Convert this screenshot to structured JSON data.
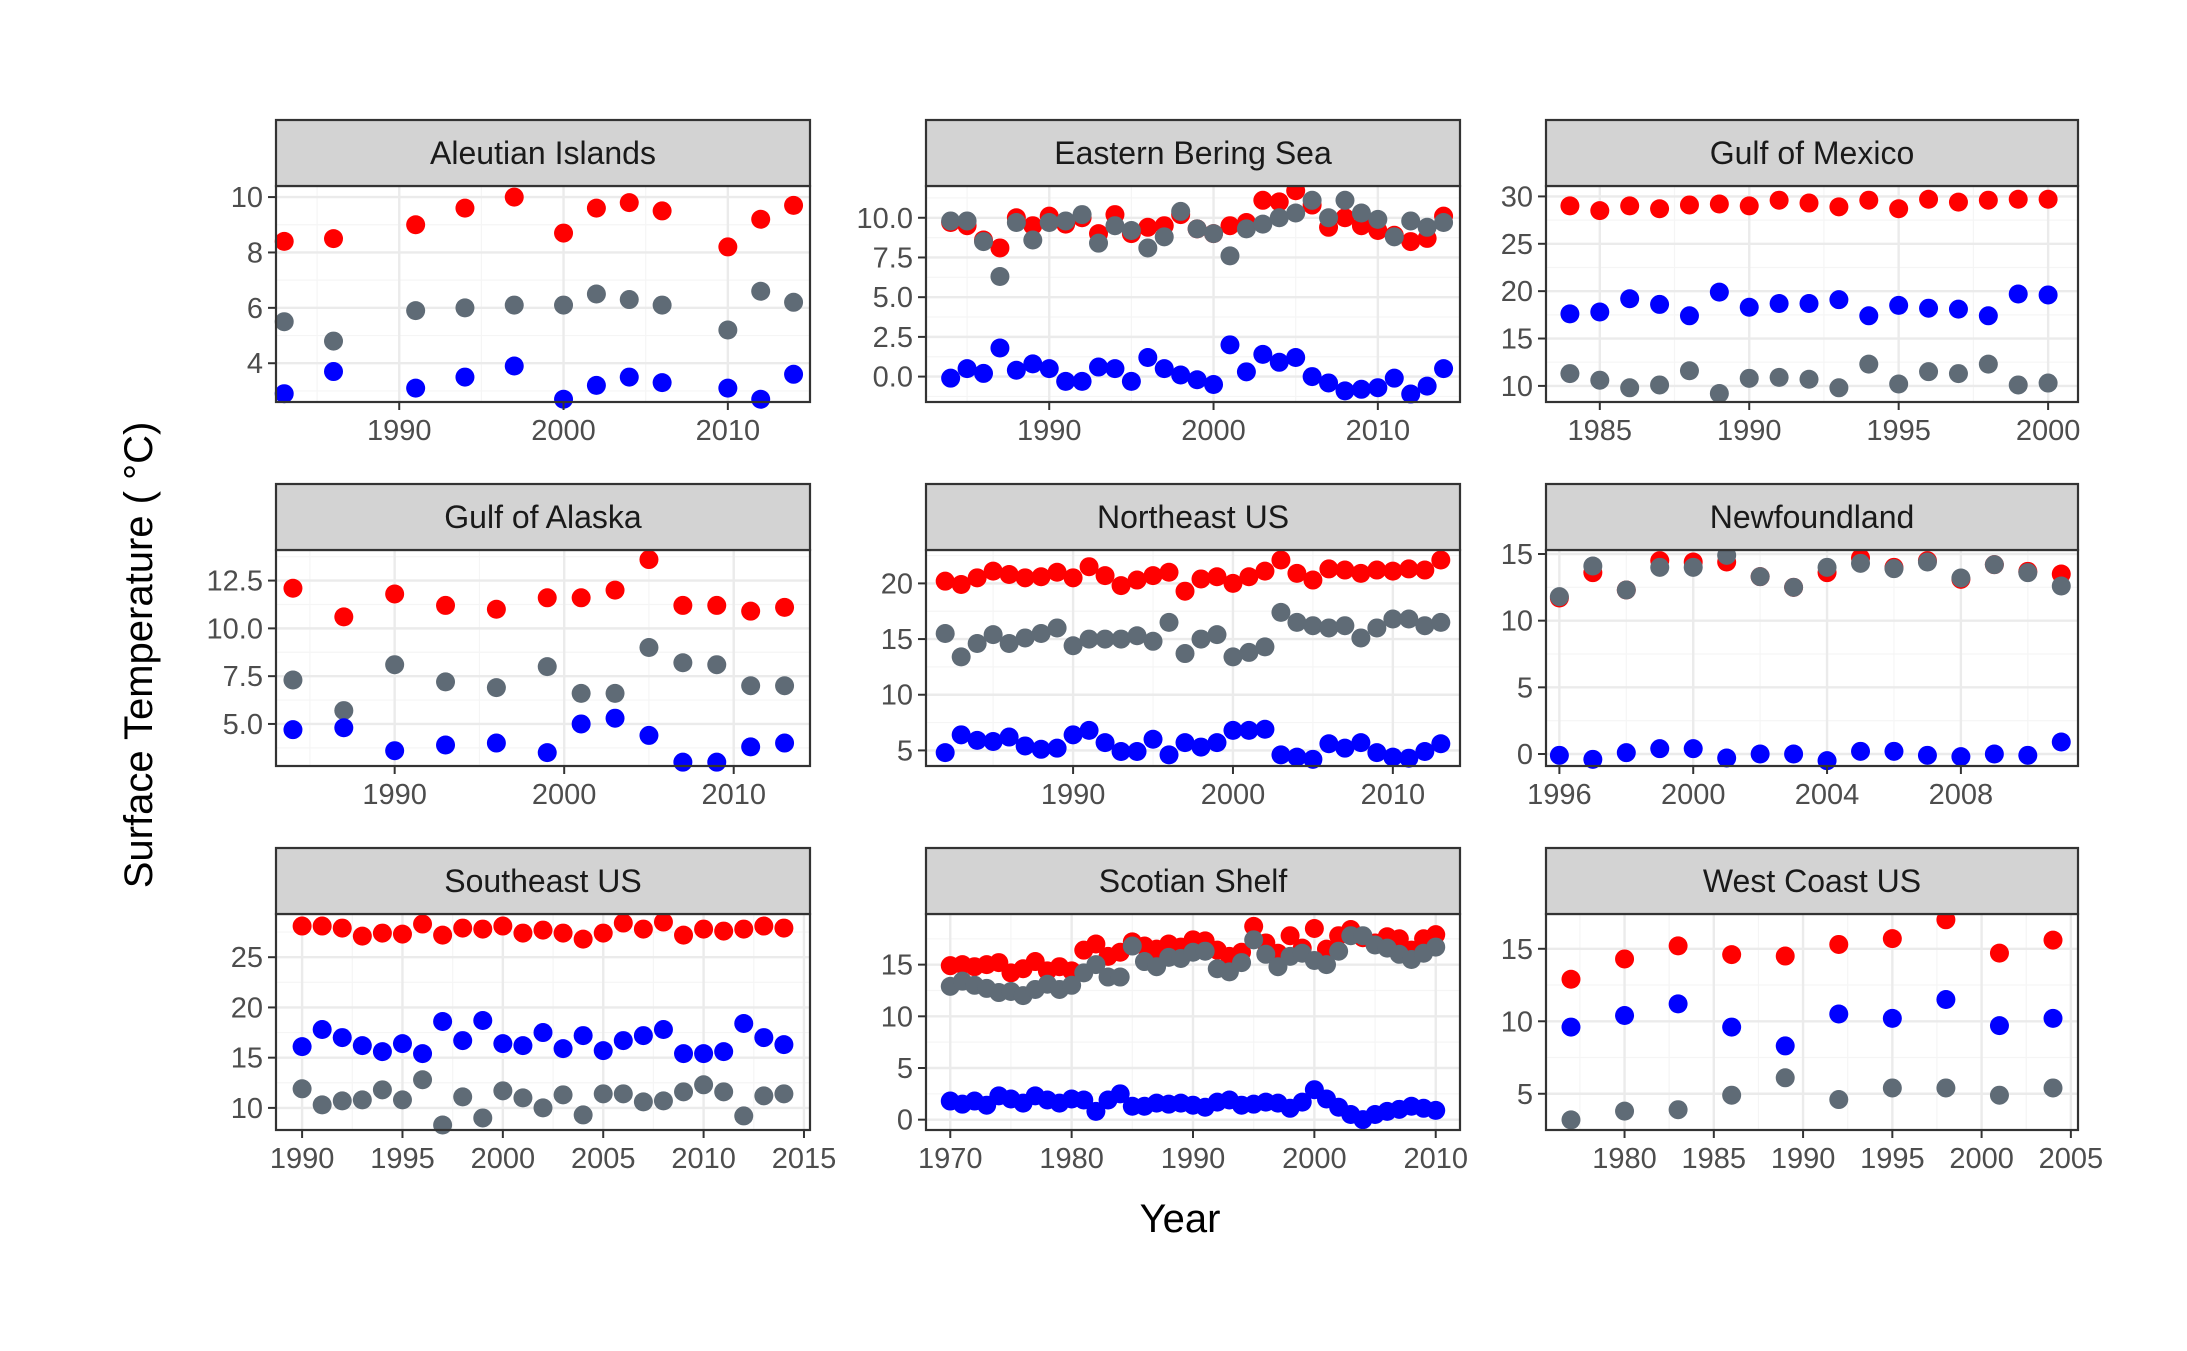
{
  "figure": {
    "xlabel": "Year",
    "ylabel": "Surface Temperature ( °C)"
  },
  "colors": {
    "red": "#ff0000",
    "blue": "#0000ff",
    "grey": "#5f6b76"
  },
  "chart_data": [
    {
      "type": "scatter",
      "title": "Aleutian Islands",
      "xlim": [
        1982.5,
        2015
      ],
      "ylim": [
        2.6,
        10.4
      ],
      "xticks": [
        1990,
        2000,
        2010
      ],
      "yticks": [
        4,
        6,
        8,
        10
      ],
      "x": [
        1983,
        1986,
        1991,
        1994,
        1997,
        2000,
        2002,
        2004,
        2006,
        2010,
        2012,
        2014
      ],
      "series": [
        {
          "color": "red",
          "values": [
            8.4,
            8.5,
            9.0,
            9.6,
            10.0,
            8.7,
            9.6,
            9.8,
            9.5,
            8.2,
            9.2,
            9.7
          ]
        },
        {
          "color": "grey",
          "values": [
            5.5,
            4.8,
            5.9,
            6.0,
            6.1,
            6.1,
            6.5,
            6.3,
            6.1,
            5.2,
            6.6,
            6.2
          ]
        },
        {
          "color": "blue",
          "values": [
            2.9,
            3.7,
            3.1,
            3.5,
            3.9,
            2.7,
            3.2,
            3.5,
            3.3,
            3.1,
            2.7,
            3.6
          ]
        }
      ]
    },
    {
      "type": "scatter",
      "title": "Eastern Bering Sea",
      "xlim": [
        1982.5,
        2015
      ],
      "ylim": [
        -1.6,
        12
      ],
      "xticks": [
        1990,
        2000,
        2010
      ],
      "yticks": [
        0.0,
        2.5,
        5.0,
        7.5,
        10.0
      ],
      "ytick_labels": [
        "0.0",
        "2.5",
        "5.0",
        "7.5",
        "10.0"
      ],
      "x": [
        1984,
        1985,
        1986,
        1987,
        1988,
        1989,
        1990,
        1991,
        1992,
        1993,
        1994,
        1995,
        1996,
        1997,
        1998,
        1999,
        2000,
        2001,
        2002,
        2003,
        2004,
        2005,
        2006,
        2007,
        2008,
        2009,
        2010,
        2011,
        2012,
        2013,
        2014
      ],
      "series": [
        {
          "color": "red",
          "values": [
            9.7,
            9.5,
            8.6,
            8.1,
            10.0,
            9.5,
            10.1,
            9.6,
            10.0,
            9.0,
            10.2,
            9.0,
            9.4,
            9.5,
            10.2,
            9.3,
            9.0,
            9.5,
            9.7,
            11.1,
            11.0,
            11.7,
            10.8,
            9.4,
            10.0,
            9.5,
            9.2,
            8.9,
            8.5,
            8.7,
            10.1
          ]
        },
        {
          "color": "grey",
          "values": [
            9.8,
            9.8,
            8.5,
            6.3,
            9.7,
            8.6,
            9.7,
            9.8,
            10.2,
            8.4,
            9.5,
            9.2,
            8.1,
            8.8,
            10.4,
            9.3,
            9.0,
            7.6,
            9.3,
            9.6,
            10.0,
            10.3,
            11.1,
            10.0,
            11.1,
            10.3,
            9.9,
            8.8,
            9.8,
            9.4,
            9.7
          ]
        },
        {
          "color": "blue",
          "values": [
            -0.1,
            0.5,
            0.2,
            1.8,
            0.4,
            0.8,
            0.5,
            -0.3,
            -0.3,
            0.6,
            0.5,
            -0.3,
            1.2,
            0.5,
            0.1,
            -0.2,
            -0.5,
            2.0,
            0.3,
            1.4,
            0.9,
            1.2,
            0.0,
            -0.4,
            -0.9,
            -0.8,
            -0.7,
            -0.1,
            -1.1,
            -0.6,
            0.5
          ]
        }
      ]
    },
    {
      "type": "scatter",
      "title": "Gulf of Mexico",
      "xlim": [
        1983.2,
        2001
      ],
      "ylim": [
        8.3,
        31.1
      ],
      "xticks": [
        1985,
        1990,
        1995,
        2000
      ],
      "yticks": [
        10,
        15,
        20,
        25,
        30
      ],
      "x": [
        1984,
        1985,
        1986,
        1987,
        1988,
        1989,
        1990,
        1991,
        1992,
        1993,
        1994,
        1995,
        1996,
        1997,
        1998,
        1999,
        2000
      ],
      "series": [
        {
          "color": "red",
          "values": [
            29.0,
            28.5,
            29.0,
            28.7,
            29.1,
            29.2,
            29.0,
            29.6,
            29.3,
            28.9,
            29.6,
            28.7,
            29.7,
            29.4,
            29.6,
            29.7,
            29.7
          ]
        },
        {
          "color": "blue",
          "values": [
            17.6,
            17.8,
            19.2,
            18.6,
            17.4,
            19.9,
            18.3,
            18.7,
            18.7,
            19.1,
            17.4,
            18.5,
            18.2,
            18.1,
            17.4,
            19.7,
            19.6
          ]
        },
        {
          "color": "grey",
          "values": [
            11.3,
            10.6,
            9.8,
            10.1,
            11.6,
            9.2,
            10.8,
            10.9,
            10.7,
            9.8,
            12.3,
            10.2,
            11.5,
            11.3,
            12.3,
            10.1,
            10.3
          ]
        }
      ]
    },
    {
      "type": "scatter",
      "title": "Gulf of Alaska",
      "xlim": [
        1983,
        2014.5
      ],
      "ylim": [
        2.8,
        14.1
      ],
      "xticks": [
        1990,
        2000,
        2010
      ],
      "yticks": [
        5.0,
        7.5,
        10.0,
        12.5
      ],
      "ytick_labels": [
        "5.0",
        "7.5",
        "10.0",
        "12.5"
      ],
      "x": [
        1984,
        1987,
        1990,
        1993,
        1996,
        1999,
        2001,
        2003,
        2005,
        2007,
        2009,
        2011,
        2013
      ],
      "series": [
        {
          "color": "red",
          "values": [
            12.1,
            10.6,
            11.8,
            11.2,
            11.0,
            11.6,
            11.6,
            12.0,
            13.6,
            11.2,
            11.2,
            10.9,
            11.1
          ]
        },
        {
          "color": "grey",
          "values": [
            7.3,
            5.7,
            8.1,
            7.2,
            6.9,
            8.0,
            6.6,
            6.6,
            9.0,
            8.2,
            8.1,
            7.0,
            7.0
          ]
        },
        {
          "color": "blue",
          "values": [
            4.7,
            4.8,
            3.6,
            3.9,
            4.0,
            3.5,
            5.0,
            5.3,
            4.4,
            3.0,
            3.0,
            3.8,
            4.0
          ]
        }
      ]
    },
    {
      "type": "scatter",
      "title": "Northeast US",
      "xlim": [
        1980.8,
        2014.2
      ],
      "ylim": [
        3.6,
        23
      ],
      "xticks": [
        1990,
        2000,
        2010
      ],
      "yticks": [
        5,
        10,
        15,
        20
      ],
      "x": [
        1982,
        1983,
        1984,
        1985,
        1986,
        1987,
        1988,
        1989,
        1990,
        1991,
        1992,
        1993,
        1994,
        1995,
        1996,
        1997,
        1998,
        1999,
        2000,
        2001,
        2002,
        2003,
        2004,
        2005,
        2006,
        2007,
        2008,
        2009,
        2010,
        2011,
        2012,
        2013
      ],
      "series": [
        {
          "color": "red",
          "values": [
            20.2,
            19.9,
            20.5,
            21.1,
            20.8,
            20.5,
            20.6,
            21.0,
            20.5,
            21.5,
            20.7,
            19.8,
            20.3,
            20.7,
            21.0,
            19.3,
            20.4,
            20.6,
            20.0,
            20.6,
            21.1,
            22.1,
            20.9,
            20.3,
            21.3,
            21.2,
            20.9,
            21.2,
            21.1,
            21.3,
            21.2,
            22.1
          ]
        },
        {
          "color": "grey",
          "values": [
            15.5,
            13.4,
            14.6,
            15.4,
            14.6,
            15.1,
            15.5,
            16.0,
            14.4,
            15.0,
            15.0,
            15.0,
            15.3,
            14.8,
            16.5,
            13.7,
            15.0,
            15.4,
            13.4,
            13.8,
            14.3,
            17.4,
            16.5,
            16.2,
            16.0,
            16.2,
            15.1,
            16.0,
            16.8,
            16.8,
            16.2,
            16.5
          ]
        },
        {
          "color": "blue",
          "values": [
            4.8,
            6.4,
            5.9,
            5.8,
            6.2,
            5.4,
            5.1,
            5.2,
            6.4,
            6.8,
            5.7,
            4.9,
            4.9,
            6.0,
            4.6,
            5.7,
            5.3,
            5.7,
            6.8,
            6.8,
            6.9,
            4.6,
            4.4,
            4.2,
            5.6,
            5.2,
            5.7,
            4.8,
            4.4,
            4.3,
            4.9,
            5.6
          ]
        }
      ]
    },
    {
      "type": "scatter",
      "title": "Newfoundland",
      "xlim": [
        1995.6,
        2011.5
      ],
      "ylim": [
        -0.9,
        15.3
      ],
      "xticks": [
        1996,
        2000,
        2004,
        2008
      ],
      "yticks": [
        0,
        5,
        10,
        15
      ],
      "x": [
        1996,
        1997,
        1998,
        1999,
        2000,
        2001,
        2002,
        2003,
        2004,
        2005,
        2006,
        2007,
        2008,
        2009,
        2010,
        2011
      ],
      "series": [
        {
          "color": "red",
          "values": [
            11.7,
            13.6,
            12.3,
            14.5,
            14.4,
            14.4,
            13.3,
            12.5,
            13.6,
            14.7,
            14.0,
            14.5,
            13.1,
            14.2,
            13.7,
            13.5
          ]
        },
        {
          "color": "grey",
          "values": [
            11.8,
            14.1,
            12.3,
            14.0,
            14.0,
            14.9,
            13.3,
            12.5,
            14.0,
            14.3,
            13.9,
            14.4,
            13.2,
            14.2,
            13.6,
            12.6
          ]
        },
        {
          "color": "blue",
          "values": [
            -0.1,
            -0.4,
            0.1,
            0.4,
            0.4,
            -0.3,
            0.0,
            0.0,
            -0.5,
            0.2,
            0.2,
            -0.1,
            -0.2,
            0.0,
            -0.1,
            0.9
          ]
        }
      ]
    },
    {
      "type": "scatter",
      "title": "Southeast US",
      "xlim": [
        1988.7,
        2015.3
      ],
      "ylim": [
        7.8,
        29.3
      ],
      "xticks": [
        1990,
        1995,
        2000,
        2005,
        2010,
        2015
      ],
      "yticks": [
        10,
        15,
        20,
        25
      ],
      "x": [
        1990,
        1991,
        1992,
        1993,
        1994,
        1995,
        1996,
        1997,
        1998,
        1999,
        2000,
        2001,
        2002,
        2003,
        2004,
        2005,
        2006,
        2007,
        2008,
        2009,
        2010,
        2011,
        2012,
        2013,
        2014
      ],
      "series": [
        {
          "color": "red",
          "values": [
            28.1,
            28.1,
            27.9,
            27.1,
            27.4,
            27.3,
            28.3,
            27.2,
            27.9,
            27.8,
            28.1,
            27.4,
            27.7,
            27.4,
            26.8,
            27.4,
            28.4,
            27.8,
            28.5,
            27.2,
            27.8,
            27.6,
            27.8,
            28.1,
            27.9
          ]
        },
        {
          "color": "blue",
          "values": [
            16.1,
            17.8,
            17.0,
            16.2,
            15.6,
            16.4,
            15.4,
            18.6,
            16.7,
            18.7,
            16.4,
            16.2,
            17.5,
            15.9,
            17.2,
            15.7,
            16.7,
            17.2,
            17.8,
            15.4,
            15.4,
            15.6,
            18.4,
            17.0,
            16.3
          ]
        },
        {
          "color": "grey",
          "values": [
            11.9,
            10.3,
            10.7,
            10.8,
            11.8,
            10.8,
            12.8,
            8.3,
            11.1,
            9.0,
            11.7,
            11.0,
            10.0,
            11.3,
            9.3,
            11.4,
            11.4,
            10.6,
            10.7,
            11.6,
            12.3,
            11.6,
            9.2,
            11.2,
            11.4
          ]
        }
      ]
    },
    {
      "type": "scatter",
      "title": "Scotian Shelf",
      "xlim": [
        1968,
        2012
      ],
      "ylim": [
        -1,
        19.9
      ],
      "xticks": [
        1970,
        1980,
        1990,
        2000,
        2010
      ],
      "yticks": [
        0,
        5,
        10,
        15
      ],
      "x": [
        1970,
        1971,
        1972,
        1973,
        1974,
        1975,
        1976,
        1977,
        1978,
        1979,
        1980,
        1981,
        1982,
        1983,
        1984,
        1985,
        1986,
        1987,
        1988,
        1989,
        1990,
        1991,
        1992,
        1993,
        1994,
        1995,
        1996,
        1997,
        1998,
        1999,
        2000,
        2001,
        2002,
        2003,
        2004,
        2005,
        2006,
        2007,
        2008,
        2009,
        2010
      ],
      "series": [
        {
          "color": "red",
          "values": [
            14.9,
            15.0,
            14.8,
            15.0,
            15.2,
            14.2,
            14.6,
            15.3,
            14.4,
            14.8,
            14.4,
            16.4,
            17.0,
            15.8,
            16.2,
            17.2,
            16.8,
            16.5,
            17.0,
            16.7,
            17.4,
            17.3,
            16.4,
            15.8,
            16.2,
            18.7,
            17.1,
            16.1,
            17.8,
            16.6,
            18.5,
            16.5,
            17.8,
            18.4,
            17.6,
            17.1,
            17.7,
            17.5,
            16.4,
            17.5,
            17.9
          ]
        },
        {
          "color": "grey",
          "values": [
            12.9,
            13.4,
            13.0,
            12.7,
            12.3,
            12.4,
            12.0,
            12.6,
            13.1,
            12.6,
            13.0,
            14.2,
            15.0,
            13.8,
            13.8,
            16.8,
            15.3,
            14.8,
            15.7,
            15.6,
            16.2,
            16.3,
            14.6,
            14.3,
            15.2,
            17.4,
            16.0,
            14.8,
            15.8,
            16.1,
            15.4,
            15.0,
            16.3,
            17.8,
            17.8,
            16.9,
            16.6,
            16.0,
            15.5,
            16.1,
            16.7
          ]
        },
        {
          "color": "blue",
          "values": [
            1.8,
            1.5,
            1.8,
            1.4,
            2.3,
            2.0,
            1.6,
            2.3,
            1.9,
            1.6,
            2.0,
            1.9,
            0.8,
            1.9,
            2.5,
            1.3,
            1.3,
            1.6,
            1.5,
            1.6,
            1.4,
            1.2,
            1.7,
            1.9,
            1.4,
            1.5,
            1.7,
            1.6,
            1.1,
            1.7,
            2.9,
            2.0,
            1.2,
            0.5,
            0.0,
            0.5,
            0.8,
            1.0,
            1.3,
            1.1,
            0.9
          ]
        }
      ]
    },
    {
      "type": "scatter",
      "title": "West Coast US",
      "xlim": [
        1975.6,
        2005.4
      ],
      "ylim": [
        2.5,
        17.4
      ],
      "xticks": [
        1980,
        1985,
        1990,
        1995,
        2000,
        2005
      ],
      "yticks": [
        5,
        10,
        15
      ],
      "x": [
        1977,
        1980,
        1983,
        1986,
        1989,
        1992,
        1995,
        1998,
        2001,
        2004
      ],
      "series": [
        {
          "color": "red",
          "values": [
            12.9,
            14.3,
            15.2,
            14.6,
            14.5,
            15.3,
            15.7,
            17.0,
            14.7,
            15.6
          ]
        },
        {
          "color": "blue",
          "values": [
            9.6,
            10.4,
            11.2,
            9.6,
            8.3,
            10.5,
            10.2,
            11.5,
            9.7,
            10.2
          ]
        },
        {
          "color": "grey",
          "values": [
            3.2,
            3.8,
            3.9,
            4.9,
            6.1,
            4.6,
            5.4,
            5.4,
            4.9,
            5.4
          ]
        }
      ]
    }
  ]
}
